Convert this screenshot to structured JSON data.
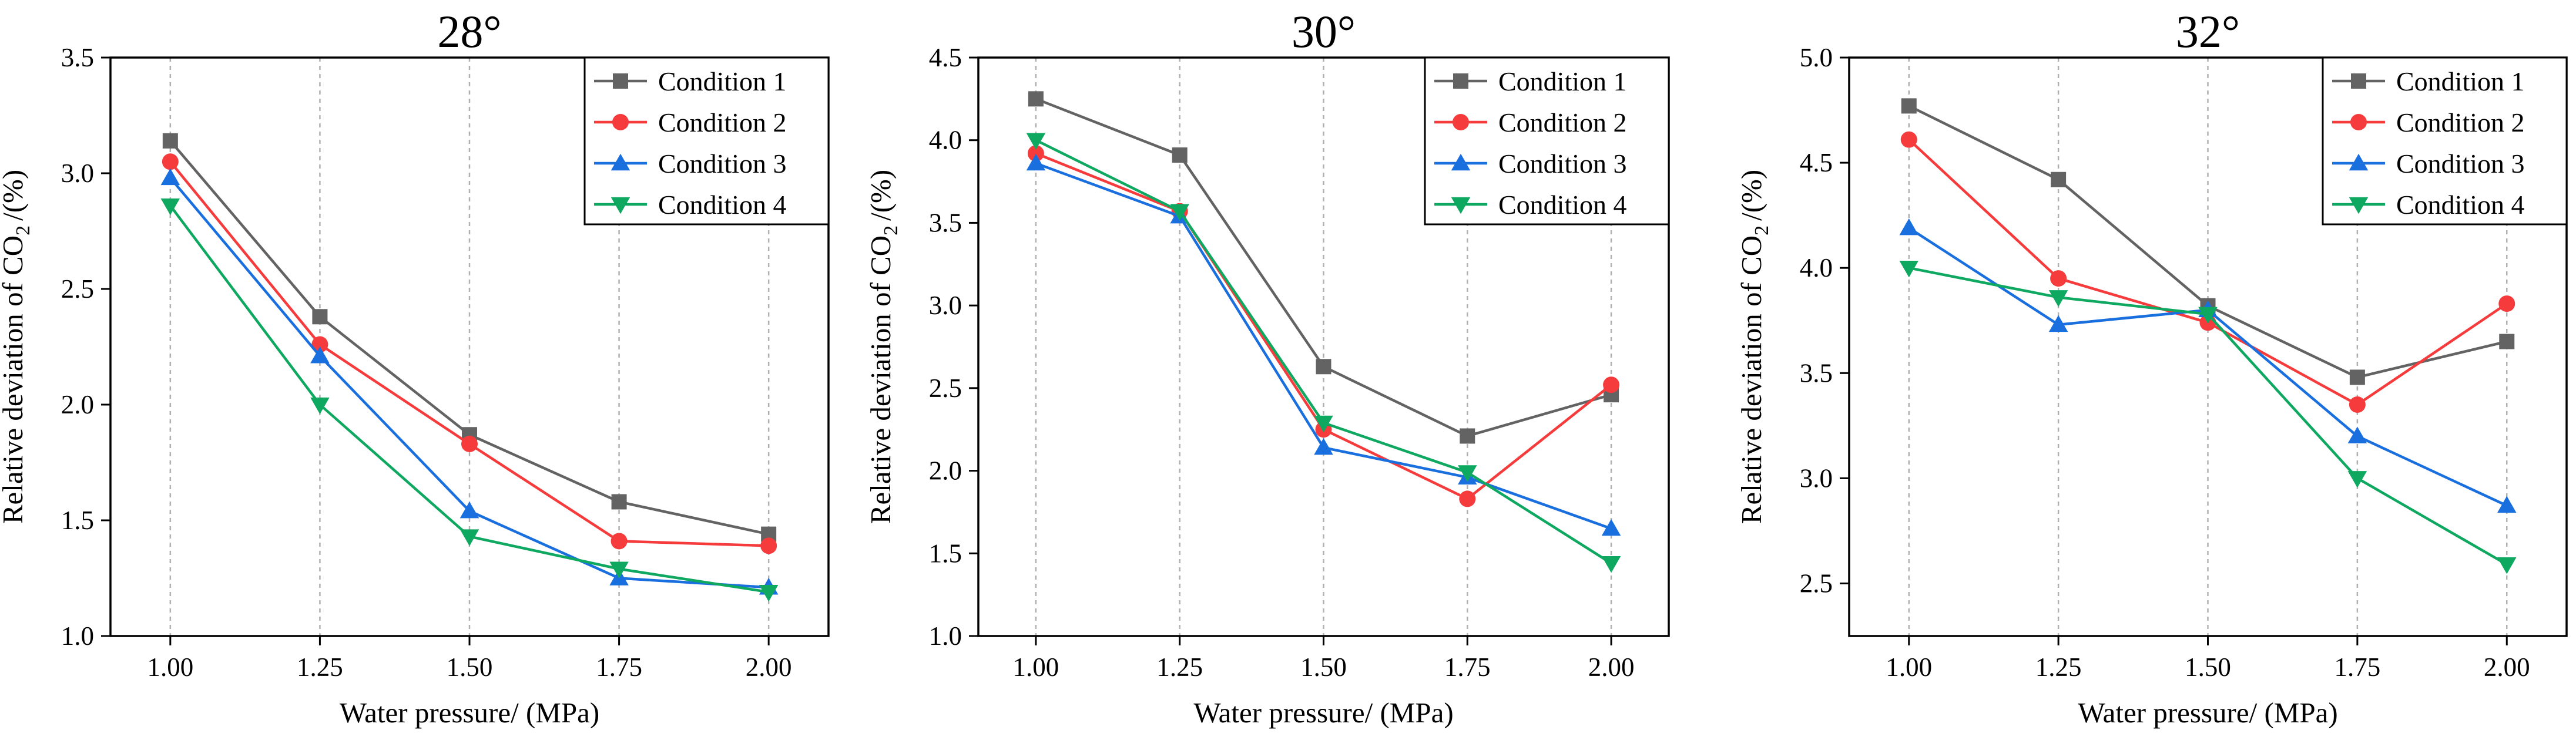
{
  "colors": {
    "condition_1": "#636363",
    "condition_2": "#f53b3b",
    "condition_3": "#1a6fdf",
    "condition_4": "#0fa861"
  },
  "markers": {
    "condition_1": "square",
    "condition_2": "circle",
    "condition_3": "triangle-up",
    "condition_4": "triangle-down"
  },
  "chart_data": [
    {
      "type": "line",
      "title": "28°",
      "xlabel": "Water pressure/ (MPa)",
      "ylabel_main": "Relative deviation of CO",
      "ylabel_sub": "2",
      "ylabel_tail": "/(%)",
      "x": [
        1.0,
        1.25,
        1.5,
        1.75,
        2.0
      ],
      "x_tick_labels": [
        "1.00",
        "1.25",
        "1.50",
        "1.75",
        "2.00"
      ],
      "xlim": [
        0.9,
        2.1
      ],
      "ylim": [
        1.0,
        3.5
      ],
      "y_ticks": [
        1.0,
        1.5,
        2.0,
        2.5,
        3.0,
        3.5
      ],
      "y_tick_labels": [
        "1.0",
        "1.5",
        "2.0",
        "2.5",
        "3.0",
        "3.5"
      ],
      "grid": "vertical dashed",
      "legend": "top-right",
      "series": [
        {
          "name": "Condition 1",
          "values": [
            3.14,
            2.38,
            1.87,
            1.58,
            1.44
          ]
        },
        {
          "name": "Condition 2",
          "values": [
            3.05,
            2.26,
            1.83,
            1.41,
            1.39
          ]
        },
        {
          "name": "Condition 3",
          "values": [
            2.98,
            2.21,
            1.54,
            1.25,
            1.21
          ]
        },
        {
          "name": "Condition 4",
          "values": [
            2.86,
            2.0,
            1.43,
            1.29,
            1.19
          ]
        }
      ]
    },
    {
      "type": "line",
      "title": "30°",
      "xlabel": "Water pressure/ (MPa)",
      "ylabel_main": "Relative deviation of CO",
      "ylabel_sub": "2",
      "ylabel_tail": "/(%)",
      "x": [
        1.0,
        1.25,
        1.5,
        1.75,
        2.0
      ],
      "x_tick_labels": [
        "1.00",
        "1.25",
        "1.50",
        "1.75",
        "2.00"
      ],
      "xlim": [
        0.9,
        2.1
      ],
      "ylim": [
        1.0,
        4.5
      ],
      "y_ticks": [
        1.0,
        1.5,
        2.0,
        2.5,
        3.0,
        3.5,
        4.0,
        4.5
      ],
      "y_tick_labels": [
        "1.0",
        "1.5",
        "2.0",
        "2.5",
        "3.0",
        "3.5",
        "4.0",
        "4.5"
      ],
      "grid": "vertical dashed",
      "legend": "top-right",
      "series": [
        {
          "name": "Condition 1",
          "values": [
            4.25,
            3.91,
            2.63,
            2.21,
            2.46
          ]
        },
        {
          "name": "Condition 2",
          "values": [
            3.92,
            3.57,
            2.25,
            1.83,
            2.52
          ]
        },
        {
          "name": "Condition 3",
          "values": [
            3.86,
            3.54,
            2.14,
            1.96,
            1.65
          ]
        },
        {
          "name": "Condition 4",
          "values": [
            4.0,
            3.57,
            2.29,
            1.99,
            1.44
          ]
        }
      ]
    },
    {
      "type": "line",
      "title": "32°",
      "xlabel": "Water pressure/ (MPa)",
      "ylabel_main": "Relative deviation of CO",
      "ylabel_sub": "2",
      "ylabel_tail": "/(%)",
      "x": [
        1.0,
        1.25,
        1.5,
        1.75,
        2.0
      ],
      "x_tick_labels": [
        "1.00",
        "1.25",
        "1.50",
        "1.75",
        "2.00"
      ],
      "xlim": [
        0.9,
        2.1
      ],
      "ylim": [
        2.25,
        5.0
      ],
      "y_ticks": [
        2.5,
        3.0,
        3.5,
        4.0,
        4.5,
        5.0
      ],
      "y_tick_labels": [
        "2.5",
        "3.0",
        "3.5",
        "4.0",
        "4.5",
        "5.0"
      ],
      "grid": "vertical dashed",
      "legend": "top-right",
      "series": [
        {
          "name": "Condition 1",
          "values": [
            4.77,
            4.42,
            3.82,
            3.48,
            3.65
          ]
        },
        {
          "name": "Condition 2",
          "values": [
            4.61,
            3.95,
            3.74,
            3.35,
            3.83
          ]
        },
        {
          "name": "Condition 3",
          "values": [
            4.19,
            3.73,
            3.8,
            3.2,
            2.87
          ]
        },
        {
          "name": "Condition 4",
          "values": [
            4.0,
            3.86,
            3.78,
            3.0,
            2.59
          ]
        }
      ]
    }
  ]
}
